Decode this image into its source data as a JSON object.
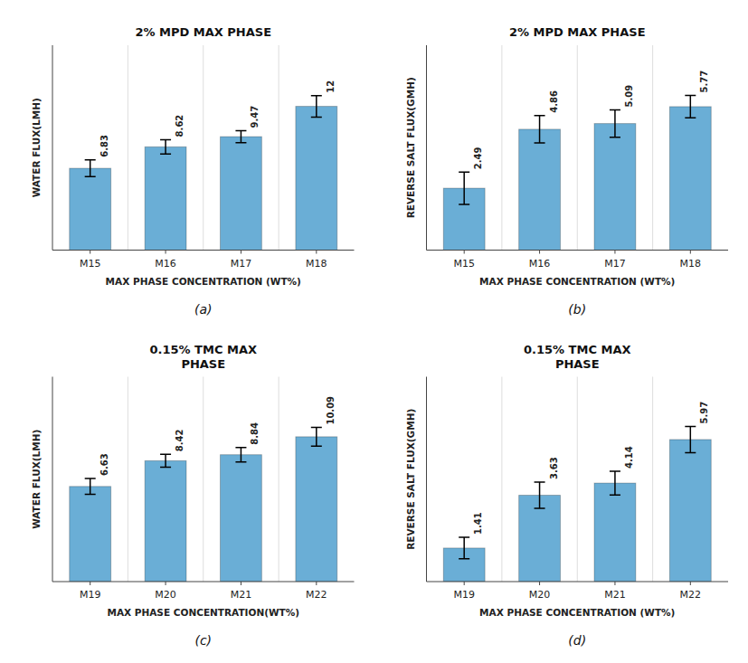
{
  "chart_data": [
    {
      "type": "bar",
      "title": "2% MPD MAX PHASE",
      "ylabel": "WATER FLUX(LMH)",
      "xlabel": "MAX PHASE CONCENTRATION (WT%)",
      "categories": [
        "M15",
        "M16",
        "M17",
        "M18"
      ],
      "values": [
        6.83,
        8.62,
        9.47,
        12
      ],
      "errors": [
        0.7,
        0.6,
        0.5,
        0.9
      ],
      "color": "#6aaed6",
      "ylim": [
        0,
        17.1
      ],
      "tick_labels": "x",
      "data_labels": true,
      "grid": "x",
      "annotations": [
        "(a)"
      ]
    },
    {
      "type": "bar",
      "title": "2% MPD MAX PHASE",
      "ylabel": "REVERSE SALT FLUX(GMH)",
      "xlabel": "MAX PHASE CONCENTRATION (WT%)",
      "categories": [
        "M15",
        "M16",
        "M17",
        "M18"
      ],
      "values": [
        2.49,
        4.86,
        5.09,
        5.77
      ],
      "errors": [
        0.65,
        0.55,
        0.55,
        0.45
      ],
      "color": "#6aaed6",
      "ylim": [
        0,
        8.2395
      ],
      "tick_labels": "x",
      "data_labels": true,
      "grid": "x",
      "annotations": [
        "(b)"
      ]
    },
    {
      "type": "bar",
      "title": "0.15% TMC MAX\nPHASE",
      "ylabel": "WATER FLUX(LMH)",
      "xlabel": "MAX PHASE CONCENTRATION(WT%)",
      "categories": [
        "M19",
        "M20",
        "M21",
        "M22"
      ],
      "values": [
        6.63,
        8.42,
        8.84,
        10.09
      ],
      "errors": [
        0.55,
        0.45,
        0.5,
        0.65
      ],
      "color": "#6aaed6",
      "ylim": [
        0,
        14.2715
      ],
      "tick_labels": "x",
      "data_labels": true,
      "grid": "x",
      "annotations": [
        "(c)"
      ]
    },
    {
      "type": "bar",
      "title": "0.15% TMC MAX\nPHASE",
      "ylabel": "REVERSE SALT FLUX(GMH)",
      "xlabel": "MAX PHASE CONCENTRATION (WT%)",
      "categories": [
        "M19",
        "M20",
        "M21",
        "M22"
      ],
      "values": [
        1.41,
        3.63,
        4.14,
        5.97
      ],
      "errors": [
        0.45,
        0.55,
        0.5,
        0.55
      ],
      "color": "#6aaed6",
      "ylim": [
        0,
        8.6095
      ],
      "tick_labels": "x",
      "data_labels": true,
      "grid": "x",
      "annotations": [
        "(d)"
      ]
    }
  ]
}
